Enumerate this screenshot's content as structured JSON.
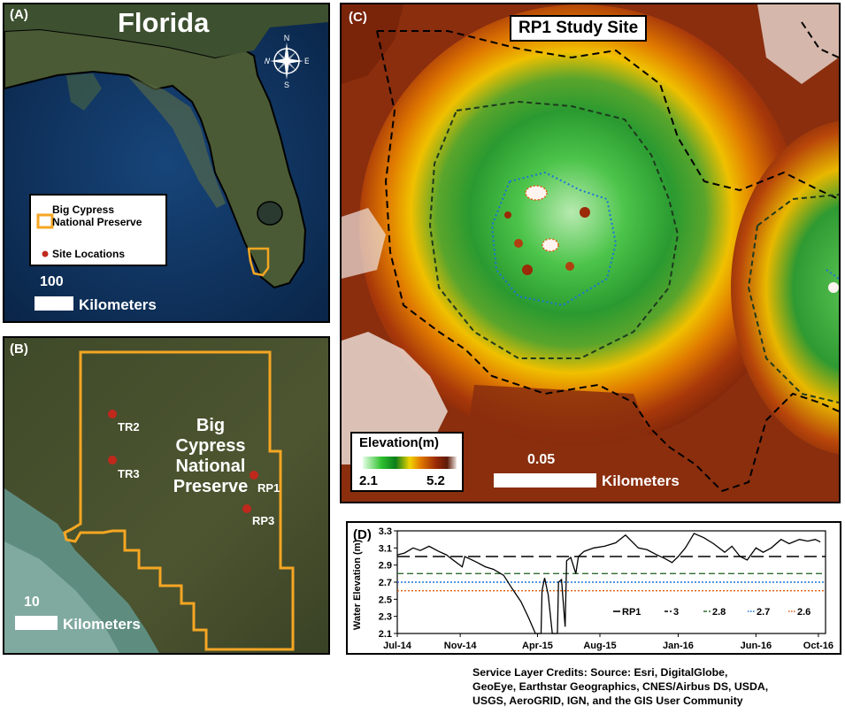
{
  "panels": {
    "a": {
      "label": "(A)",
      "title": "Florida",
      "compass": {
        "n": "N",
        "s": "S",
        "e": "E",
        "w": "W"
      },
      "legend": {
        "item1_line1": "Big Cypress",
        "item1_line2": "National Preserve",
        "item2": "Site Locations"
      },
      "scale": {
        "value": "100",
        "unit": "Kilometers"
      }
    },
    "b": {
      "label": "(B)",
      "preserve_name": [
        "Big",
        "Cypress",
        "National",
        "Preserve"
      ],
      "sites": [
        "TR2",
        "TR3",
        "RP1",
        "RP3"
      ],
      "scale": {
        "value": "10",
        "unit": "Kilometers"
      }
    },
    "c": {
      "label": "(C)",
      "title": "RP1 Study Site",
      "elevation_legend": {
        "title": "Elevation(m)",
        "min": "2.1",
        "max": "5.2"
      },
      "scale": {
        "value": "0.05",
        "unit": "Kilometers"
      }
    },
    "d": {
      "label": "(D)"
    }
  },
  "colors": {
    "preserve_outline": "#f5a623",
    "site_marker": "#c0281c",
    "threshold_3": "#000000",
    "threshold_2_8": "#2e6b2e",
    "threshold_2_7": "#1a73d9",
    "threshold_2_6": "#e06010"
  },
  "chart_data": {
    "type": "line",
    "title": "",
    "xlabel": "",
    "ylabel": "Water Elevation (m)",
    "x_ticks": [
      "Jul-14",
      "Nov-14",
      "Apr-15",
      "Aug-15",
      "Jan-16",
      "Jun-16",
      "Oct-16"
    ],
    "y_ticks": [
      "2.1",
      "2.3",
      "2.5",
      "2.7",
      "2.9",
      "3.1",
      "3.3"
    ],
    "ylim": [
      2.1,
      3.3
    ],
    "xlim": [
      "2014-07-01",
      "2016-10-15"
    ],
    "legend_position": "bottom-right",
    "series": [
      {
        "name": "RP1",
        "style": "solid",
        "color": "#000000",
        "points": [
          [
            "2014-07-01",
            3.02
          ],
          [
            "2014-07-15",
            3.04
          ],
          [
            "2014-08-01",
            3.1
          ],
          [
            "2014-08-15",
            3.07
          ],
          [
            "2014-09-01",
            3.12
          ],
          [
            "2014-09-20",
            3.06
          ],
          [
            "2014-10-05",
            3.02
          ],
          [
            "2014-10-20",
            2.95
          ],
          [
            "2014-11-05",
            2.88
          ],
          [
            "2014-11-10",
            3.0
          ],
          [
            "2014-12-01",
            2.94
          ],
          [
            "2014-12-20",
            2.88
          ],
          [
            "2015-01-05",
            2.85
          ],
          [
            "2015-01-25",
            2.78
          ],
          [
            "2015-02-10",
            2.63
          ],
          [
            "2015-02-28",
            2.47
          ],
          [
            "2015-03-15",
            2.28
          ],
          [
            "2015-03-28",
            2.1
          ],
          [
            "2015-04-08",
            2.1
          ],
          [
            "2015-04-10",
            2.6
          ],
          [
            "2015-04-15",
            2.75
          ],
          [
            "2015-04-22",
            2.55
          ],
          [
            "2015-04-30",
            2.1
          ],
          [
            "2015-05-10",
            2.1
          ],
          [
            "2015-05-12",
            2.7
          ],
          [
            "2015-05-18",
            2.73
          ],
          [
            "2015-05-25",
            2.18
          ],
          [
            "2015-05-28",
            2.95
          ],
          [
            "2015-06-05",
            2.99
          ],
          [
            "2015-06-15",
            2.8
          ],
          [
            "2015-06-20",
            3.0
          ],
          [
            "2015-07-01",
            3.06
          ],
          [
            "2015-07-20",
            3.1
          ],
          [
            "2015-08-10",
            3.12
          ],
          [
            "2015-09-01",
            3.16
          ],
          [
            "2015-09-20",
            3.25
          ],
          [
            "2015-10-15",
            3.1
          ],
          [
            "2015-11-01",
            3.08
          ],
          [
            "2015-11-20",
            3.02
          ],
          [
            "2015-12-05",
            2.98
          ],
          [
            "2015-12-20",
            2.93
          ],
          [
            "2016-01-01",
            3.0
          ],
          [
            "2016-01-15",
            3.1
          ],
          [
            "2016-02-01",
            3.27
          ],
          [
            "2016-02-20",
            3.22
          ],
          [
            "2016-03-10",
            3.15
          ],
          [
            "2016-04-01",
            3.05
          ],
          [
            "2016-04-15",
            3.12
          ],
          [
            "2016-05-01",
            3.0
          ],
          [
            "2016-05-15",
            2.96
          ],
          [
            "2016-06-01",
            3.1
          ],
          [
            "2016-06-15",
            3.05
          ],
          [
            "2016-07-01",
            3.1
          ],
          [
            "2016-07-20",
            3.2
          ],
          [
            "2016-08-05",
            3.15
          ],
          [
            "2016-08-25",
            3.2
          ],
          [
            "2016-09-10",
            3.18
          ],
          [
            "2016-09-25",
            3.2
          ],
          [
            "2016-10-05",
            3.17
          ]
        ]
      },
      {
        "name": "3",
        "style": "dashed",
        "color": "#000000",
        "value": 3.0
      },
      {
        "name": "2.8",
        "style": "dashed",
        "color": "#2e6b2e",
        "value": 2.8
      },
      {
        "name": "2.7",
        "style": "dotted",
        "color": "#1a73d9",
        "value": 2.7
      },
      {
        "name": "2.6",
        "style": "dotted",
        "color": "#e06010",
        "value": 2.6
      }
    ]
  },
  "credits": [
    "Service Layer Credits:  Source: Esri, DigitalGlobe,",
    "GeoEye, Earthstar Geographics, CNES/Airbus DS, USDA,",
    "USGS, AeroGRID, IGN, and the GIS User Community"
  ]
}
